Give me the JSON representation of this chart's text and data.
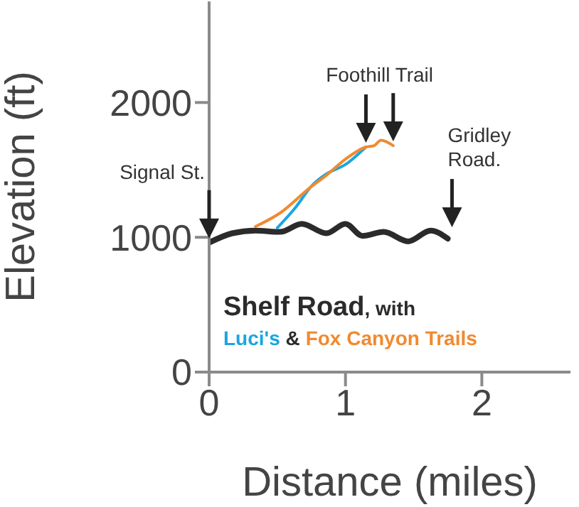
{
  "chart_data": {
    "type": "line",
    "xlabel": "Distance (miles)",
    "ylabel": "Elevation (ft)",
    "xlim": [
      0,
      2.65
    ],
    "xticks": [
      0,
      1,
      2
    ],
    "ylim": [
      0,
      2750
    ],
    "yticks": [
      0,
      1000,
      2000
    ],
    "grid": false,
    "legend": "bottom",
    "marker": "none",
    "line_style": "solid",
    "series": [
      {
        "name": "Shelf Road",
        "color": "#2b2b2b",
        "x": [
          0,
          0.17,
          0.34,
          0.52,
          0.68,
          0.86,
          1.0,
          1.125,
          1.28,
          1.46,
          1.625,
          1.75
        ],
        "values": [
          960,
          1030,
          1050,
          1040,
          1100,
          1030,
          1100,
          1010,
          1040,
          970,
          1050,
          990
        ]
      },
      {
        "name": "Luci's",
        "color": "#1aa6e0",
        "x": [
          0.5,
          0.625,
          0.76,
          0.86,
          1.0,
          1.15
        ],
        "values": [
          1070,
          1210,
          1390,
          1470,
          1540,
          1670
        ]
      },
      {
        "name": "Fox Canyon Trails",
        "color": "#f08a30",
        "x": [
          0.34,
          0.52,
          0.73,
          0.86,
          1.0,
          1.15,
          1.21,
          1.26,
          1.35
        ],
        "values": [
          1080,
          1180,
          1360,
          1460,
          1580,
          1670,
          1680,
          1720,
          1680
        ]
      }
    ],
    "annotations": [
      "Signal St.",
      "Foothill Trail",
      "Gridley Road.",
      ", with",
      "&"
    ]
  }
}
